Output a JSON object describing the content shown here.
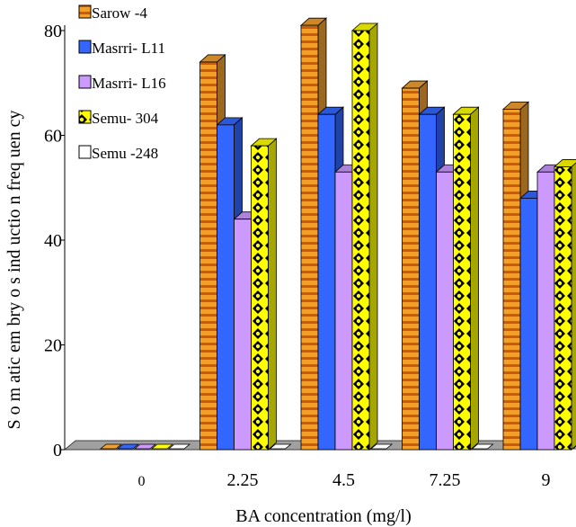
{
  "chart_data": {
    "type": "bar",
    "categories": [
      "0",
      "2.25",
      "4.5",
      "7.25",
      "9"
    ],
    "series": [
      {
        "name": "Sarow -4",
        "values": [
          0,
          74,
          81,
          69,
          65
        ],
        "color": "#f0a030",
        "pattern": "horizontal-stripes"
      },
      {
        "name": "Masrri- L11",
        "values": [
          0,
          62,
          64,
          64,
          48
        ],
        "color": "#3366ff",
        "pattern": "solid"
      },
      {
        "name": "Masrri- L16",
        "values": [
          0,
          44,
          53,
          53,
          53
        ],
        "color": "#cc99ff",
        "pattern": "solid"
      },
      {
        "name": "Semu- 304",
        "values": [
          0,
          58,
          80,
          64,
          54
        ],
        "color": "#ffff00",
        "pattern": "yellow-black-diamonds"
      },
      {
        "name": "Semu -248",
        "values": [
          0,
          0,
          0,
          0,
          0
        ],
        "color": "#ffffff",
        "pattern": "solid"
      }
    ],
    "xlabel": "BA concentration (mg/l)",
    "ylabel": "S o m atic em bry o s ind uctio n freq uen cy",
    "ylim": [
      0,
      80
    ],
    "yticks": [
      "0",
      "20",
      "40",
      "60",
      "80"
    ],
    "grid": false,
    "legend_position": "top-left",
    "style": "3d-column"
  }
}
